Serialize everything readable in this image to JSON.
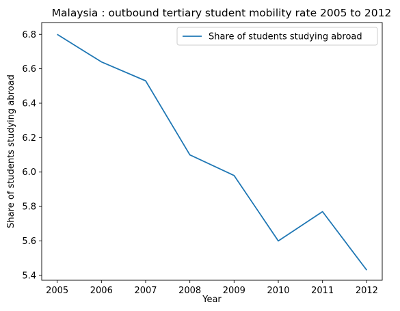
{
  "chart_data": {
    "type": "line",
    "title": "Malaysia : outbound tertiary student mobility rate 2005 to 2012",
    "xlabel": "Year",
    "ylabel": "Share of students studying abroad",
    "categories": [
      "2005",
      "2006",
      "2007",
      "2008",
      "2009",
      "2010",
      "2011",
      "2012"
    ],
    "series": [
      {
        "name": "Share of students studying abroad",
        "color": "#1f77b4",
        "values": [
          6.8,
          6.64,
          6.53,
          6.1,
          5.98,
          5.6,
          5.77,
          5.43
        ]
      }
    ],
    "yticks": [
      "5.4",
      "5.6",
      "5.8",
      "6.0",
      "6.2",
      "6.4",
      "6.6",
      "6.8"
    ],
    "ylim": [
      5.3715,
      6.8685
    ],
    "xlim": [
      2004.65,
      2012.35
    ],
    "grid": false,
    "legend_position": "top-right"
  }
}
